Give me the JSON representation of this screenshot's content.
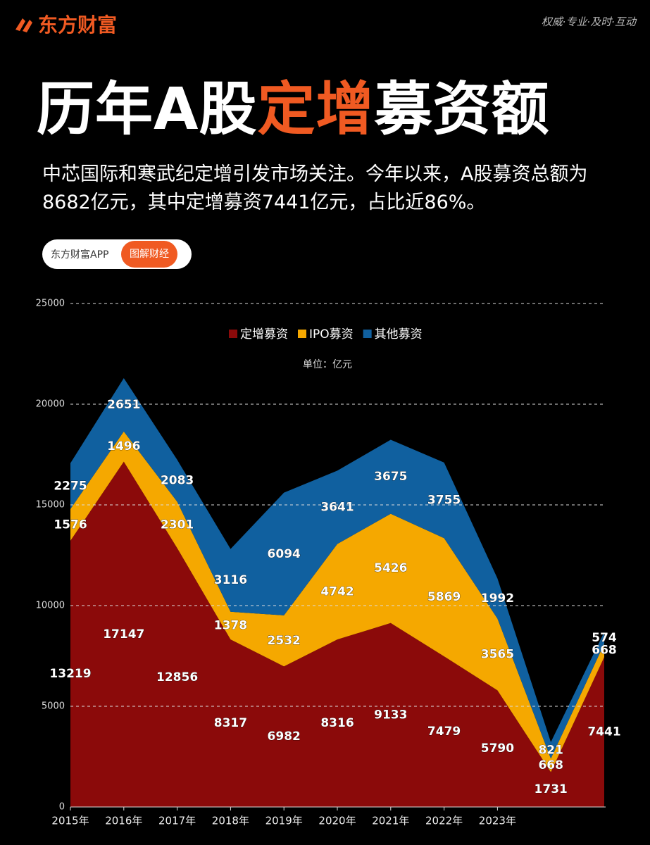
{
  "header": {
    "logo": "东方财富",
    "slogan": "权威·专业·及时·互动"
  },
  "title": {
    "prefix": "历年A股",
    "highlight": "定增",
    "suffix": "募资额"
  },
  "subtitle": "中芯国际和寒武纪定增引发市场关注。今年以来，A股募资总额为8682亿元，其中定增募资7441亿元，占比近86%。",
  "badge": {
    "app": "东方财富APP",
    "tag": "图解财经"
  },
  "chart_data": {
    "type": "stacked-area",
    "unit": "单位：亿元",
    "categories": [
      "2015年",
      "2016年",
      "2017年",
      "2018年",
      "2019年",
      "2020年",
      "2021年",
      "2022年",
      "2023年",
      null,
      null
    ],
    "series": [
      {
        "name": "定增募资",
        "color": "#8b0a0a",
        "values": [
          13219,
          17147,
          12856,
          8317,
          6982,
          8316,
          9133,
          7479,
          5790,
          1731,
          7441
        ]
      },
      {
        "name": "IPO募资",
        "color": "#f5a800",
        "values": [
          1576,
          1496,
          2301,
          1378,
          2532,
          4742,
          5426,
          5869,
          3565,
          668,
          668
        ]
      },
      {
        "name": "其他募资",
        "color": "#10609f",
        "values": [
          2275,
          2651,
          2083,
          3116,
          6094,
          3641,
          3675,
          3755,
          1992,
          821,
          574
        ]
      }
    ],
    "ylim": [
      0,
      25000
    ],
    "yticks": [
      0,
      5000,
      10000,
      15000,
      20000,
      25000
    ],
    "grid": true,
    "legend": "top"
  }
}
